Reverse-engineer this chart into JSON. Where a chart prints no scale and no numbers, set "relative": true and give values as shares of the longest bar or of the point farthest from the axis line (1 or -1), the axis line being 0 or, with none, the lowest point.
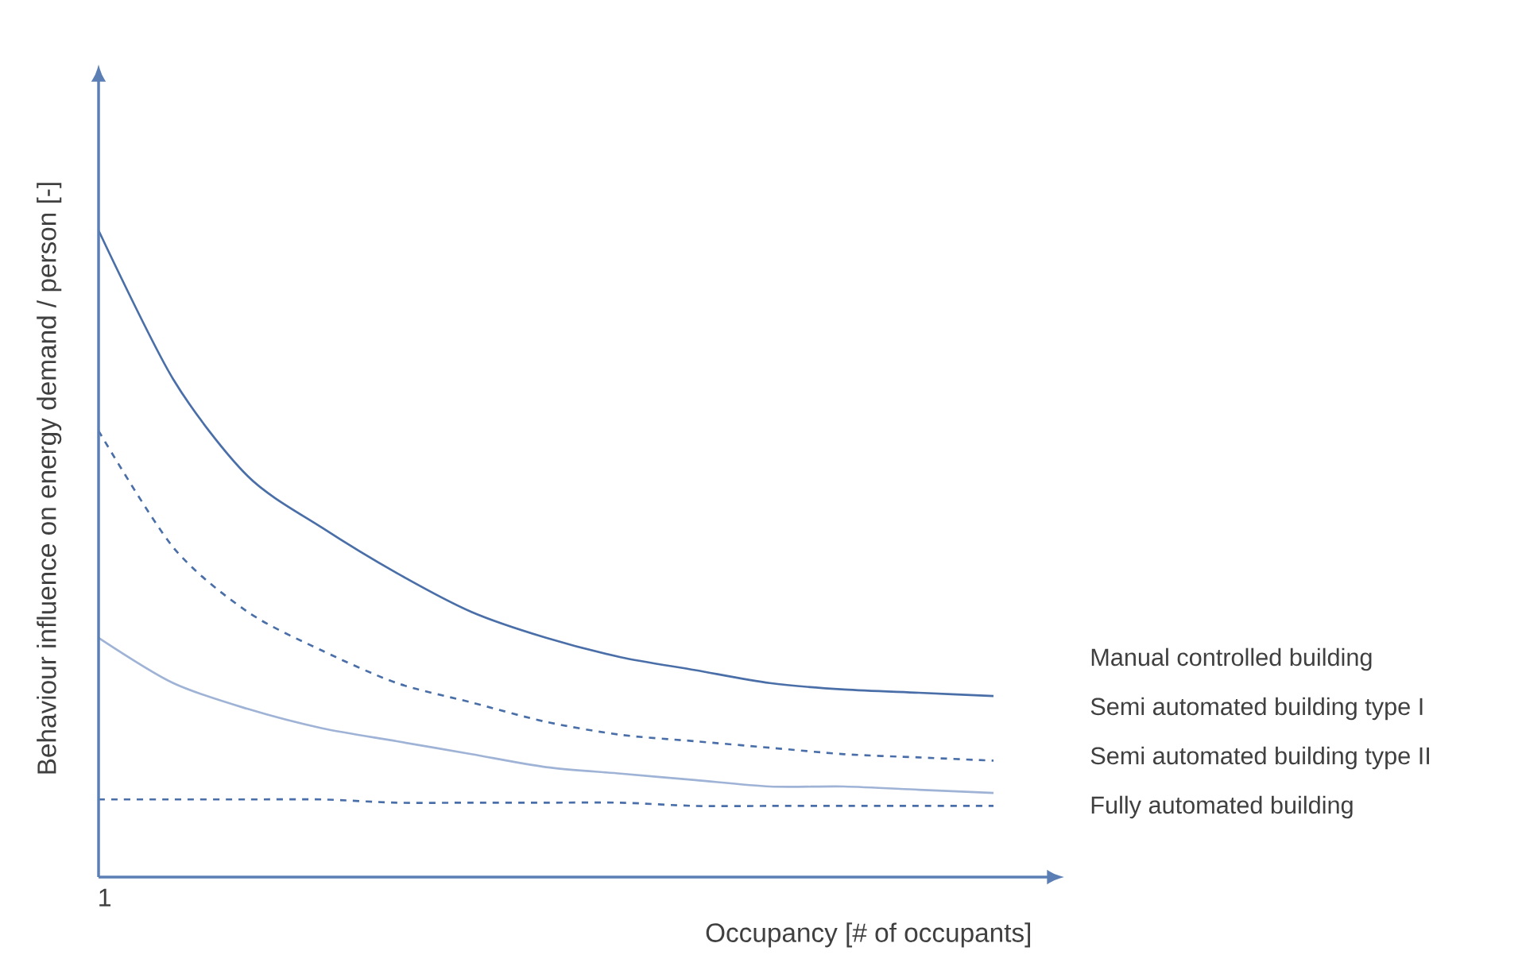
{
  "chart_data": {
    "type": "line",
    "relative": true,
    "xlabel": "Occupancy [# of occupants]",
    "ylabel": "Behaviour influence on energy demand / person [-]",
    "categories": [
      null,
      null,
      null,
      null,
      null,
      null,
      null,
      null,
      null,
      null,
      null,
      null,
      null
    ],
    "annotations": [
      "1"
    ],
    "marker": "none",
    "legend": false,
    "series": [
      {
        "name": "Manual controlled building",
        "color": "#4a6fa8",
        "line_style": "solid",
        "values": [
          1.0,
          0.77,
          0.62,
          0.54,
          0.47,
          0.41,
          0.37,
          0.34,
          0.32,
          0.3,
          0.29,
          0.285,
          0.28
        ]
      },
      {
        "name": "Semi automated building type I",
        "color": "#4a6fa8",
        "line_style": "dashed",
        "values": [
          0.69,
          0.51,
          0.41,
          0.35,
          0.3,
          0.27,
          0.24,
          0.22,
          0.21,
          0.2,
          0.19,
          0.185,
          0.18
        ]
      },
      {
        "name": "Semi automated building type II",
        "color": "#9fb3d6",
        "line_style": "solid",
        "values": [
          0.37,
          0.3,
          0.26,
          0.23,
          0.21,
          0.19,
          0.17,
          0.16,
          0.15,
          0.14,
          0.14,
          0.135,
          0.13
        ]
      },
      {
        "name": "Fully automated building",
        "color": "#4a6fa8",
        "line_style": "dashed",
        "values": [
          0.12,
          0.12,
          0.12,
          0.12,
          0.115,
          0.115,
          0.115,
          0.115,
          0.11,
          0.11,
          0.11,
          0.11,
          0.11
        ]
      }
    ]
  }
}
